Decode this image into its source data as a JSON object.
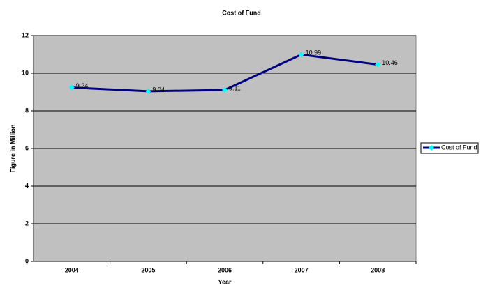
{
  "chart_data": {
    "type": "line",
    "title": "Cost of Fund",
    "x_label": "Year",
    "y_label": "Figure in Million",
    "categories": [
      "2004",
      "2005",
      "2006",
      "2007",
      "2008"
    ],
    "series": [
      {
        "name": "Cost of Fund",
        "color": "#000080",
        "marker_color": "#00ffff",
        "values": [
          9.24,
          9.04,
          9.11,
          10.99,
          10.46
        ]
      }
    ],
    "ylim": [
      0,
      12
    ],
    "yticks": [
      0,
      2,
      4,
      6,
      8,
      10,
      12
    ],
    "grid": true,
    "legend": "right"
  }
}
